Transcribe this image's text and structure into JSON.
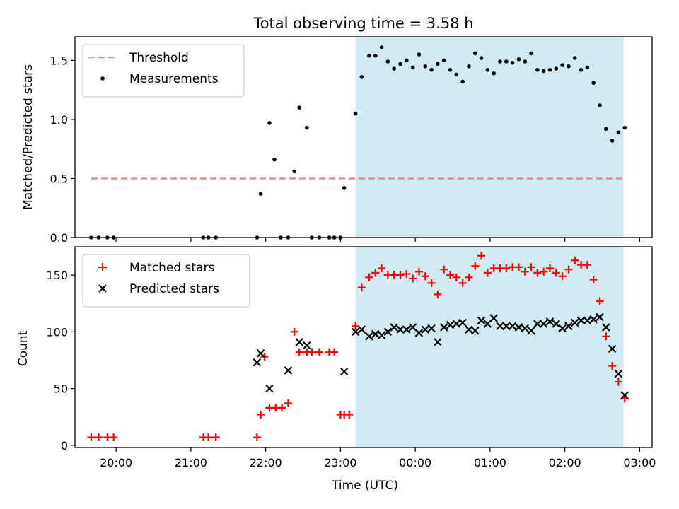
{
  "chart_data": [
    {
      "type": "scatter",
      "title": "Total observing time = 3.58 h",
      "xlabel": "",
      "ylabel": "Matched/Predicted stars",
      "xlim": [
        "19:27",
        "03:10"
      ],
      "ylim": [
        0,
        1.7
      ],
      "yticks": [
        "0.0",
        "0.5",
        "1.0",
        "1.5"
      ],
      "grid": false,
      "legend_position": "top-left",
      "shaded_interval": [
        "23:12",
        "02:47"
      ],
      "shade_color": "#add8e6",
      "threshold": {
        "name": "Threshold",
        "value": 0.5,
        "x_range": [
          "19:40",
          "02:47"
        ],
        "color": "#f08080"
      },
      "series": [
        {
          "name": "Measurements",
          "color": "#000000",
          "marker": "dot",
          "x": [
            "19:40",
            "19:46",
            "19:53",
            "19:58",
            "21:10",
            "21:14",
            "21:20",
            "21:53",
            "21:56",
            "22:03",
            "22:07",
            "22:12",
            "22:18",
            "22:23",
            "22:27",
            "22:33",
            "22:37",
            "22:43",
            "22:51",
            "22:55",
            "23:00",
            "23:03",
            "23:12",
            "23:17",
            "23:23",
            "23:28",
            "23:33",
            "23:38",
            "23:43",
            "23:48",
            "23:53",
            "23:58",
            "00:03",
            "00:08",
            "00:13",
            "00:18",
            "00:23",
            "00:28",
            "00:33",
            "00:38",
            "00:43",
            "00:48",
            "00:53",
            "00:58",
            "01:03",
            "01:08",
            "01:13",
            "01:18",
            "01:23",
            "01:28",
            "01:33",
            "01:38",
            "01:43",
            "01:48",
            "01:53",
            "01:58",
            "02:03",
            "02:08",
            "02:13",
            "02:18",
            "02:23",
            "02:28",
            "02:33",
            "02:38",
            "02:43",
            "02:48"
          ],
          "y": [
            0,
            0,
            0,
            0,
            0,
            0,
            0,
            0,
            0.37,
            0.97,
            0.66,
            0,
            0,
            0.56,
            1.1,
            0.93,
            0,
            0,
            0,
            0,
            0,
            0.42,
            1.05,
            1.36,
            1.54,
            1.54,
            1.61,
            1.49,
            1.43,
            1.47,
            1.5,
            1.44,
            1.55,
            1.45,
            1.42,
            1.47,
            1.5,
            1.42,
            1.38,
            1.32,
            1.45,
            1.56,
            1.52,
            1.42,
            1.39,
            1.49,
            1.49,
            1.48,
            1.51,
            1.49,
            1.56,
            1.42,
            1.41,
            1.42,
            1.43,
            1.46,
            1.45,
            1.52,
            1.42,
            1.44,
            1.31,
            1.12,
            0.92,
            0.82,
            0.89,
            0.93
          ]
        }
      ]
    },
    {
      "type": "scatter",
      "title": "",
      "xlabel": "Time (UTC)",
      "ylabel": "Count",
      "xlim": [
        "19:27",
        "03:10"
      ],
      "ylim": [
        -2,
        175
      ],
      "yticks": [
        "0",
        "50",
        "100",
        "150"
      ],
      "xticks": [
        "20:00",
        "21:00",
        "22:00",
        "23:00",
        "00:00",
        "01:00",
        "02:00",
        "03:00"
      ],
      "grid": false,
      "legend_position": "top-left",
      "shaded_interval": [
        "23:12",
        "02:47"
      ],
      "shade_color": "#add8e6",
      "series": [
        {
          "name": "Matched stars",
          "color": "#ff0000",
          "marker": "plus",
          "x": [
            "19:40",
            "19:46",
            "19:53",
            "19:58",
            "21:10",
            "21:14",
            "21:20",
            "21:53",
            "21:56",
            "21:59",
            "22:03",
            "22:08",
            "22:13",
            "22:18",
            "22:23",
            "22:27",
            "22:33",
            "22:37",
            "22:43",
            "22:51",
            "22:55",
            "23:00",
            "23:03",
            "23:07",
            "23:12",
            "23:17",
            "23:23",
            "23:28",
            "23:33",
            "23:38",
            "23:43",
            "23:48",
            "23:53",
            "23:58",
            "00:03",
            "00:08",
            "00:13",
            "00:18",
            "00:23",
            "00:28",
            "00:33",
            "00:38",
            "00:43",
            "00:48",
            "00:53",
            "00:58",
            "01:03",
            "01:08",
            "01:13",
            "01:18",
            "01:23",
            "01:28",
            "01:33",
            "01:38",
            "01:43",
            "01:48",
            "01:53",
            "01:58",
            "02:03",
            "02:08",
            "02:13",
            "02:18",
            "02:23",
            "02:28",
            "02:33",
            "02:38",
            "02:43",
            "02:48"
          ],
          "y": [
            7,
            7,
            7,
            7,
            7,
            7,
            7,
            7,
            27,
            78,
            33,
            33,
            33,
            37,
            100,
            82,
            82,
            82,
            82,
            82,
            82,
            27,
            27,
            27,
            105,
            139,
            148,
            152,
            156,
            150,
            150,
            150,
            151,
            147,
            153,
            149,
            143,
            133,
            155,
            150,
            148,
            143,
            148,
            158,
            167,
            152,
            156,
            156,
            156,
            157,
            157,
            153,
            157,
            152,
            153,
            156,
            152,
            149,
            155,
            163,
            159,
            159,
            146,
            127,
            96,
            70,
            56,
            41
          ]
        },
        {
          "name": "Predicted stars",
          "color": "#000000",
          "marker": "x",
          "x": [
            "21:53",
            "21:56",
            "22:03",
            "22:18",
            "22:27",
            "22:33",
            "23:03",
            "23:12",
            "23:17",
            "23:23",
            "23:28",
            "23:33",
            "23:38",
            "23:43",
            "23:48",
            "23:53",
            "23:58",
            "00:03",
            "00:08",
            "00:13",
            "00:18",
            "00:23",
            "00:28",
            "00:33",
            "00:38",
            "00:43",
            "00:48",
            "00:53",
            "00:58",
            "01:03",
            "01:08",
            "01:13",
            "01:18",
            "01:23",
            "01:28",
            "01:33",
            "01:38",
            "01:43",
            "01:48",
            "01:53",
            "01:58",
            "02:03",
            "02:08",
            "02:13",
            "02:18",
            "02:23",
            "02:28",
            "02:33",
            "02:38",
            "02:43",
            "02:48"
          ],
          "y": [
            73,
            81,
            50,
            66,
            91,
            88,
            65,
            100,
            102,
            96,
            98,
            97,
            100,
            104,
            102,
            102,
            104,
            99,
            102,
            103,
            91,
            104,
            106,
            107,
            108,
            102,
            101,
            110,
            107,
            112,
            105,
            105,
            105,
            104,
            103,
            101,
            107,
            107,
            109,
            107,
            103,
            105,
            108,
            110,
            110,
            111,
            113,
            104,
            85,
            63,
            44
          ]
        }
      ]
    }
  ]
}
